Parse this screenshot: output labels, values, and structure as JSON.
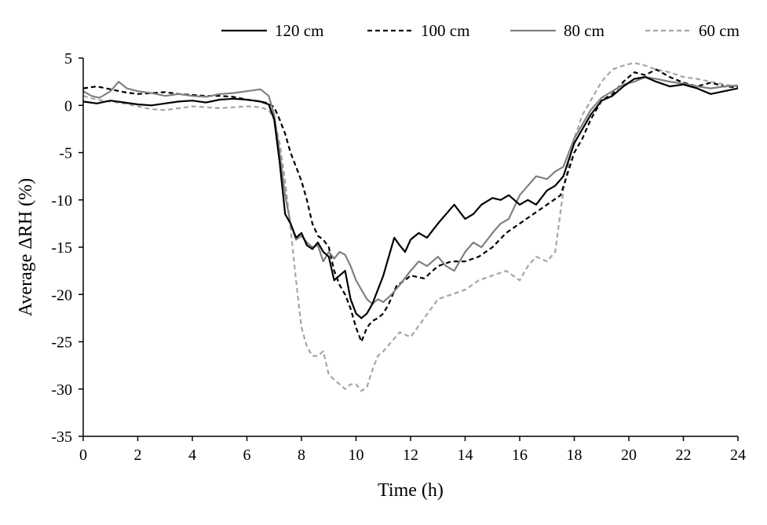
{
  "chart_data": {
    "type": "line",
    "title": "",
    "xlabel": "Time (h)",
    "ylabel": "Average ΔRH (%)",
    "xlim": [
      0,
      24
    ],
    "ylim": [
      -35,
      5
    ],
    "xticks": [
      0,
      2,
      4,
      6,
      8,
      10,
      12,
      14,
      16,
      18,
      20,
      22,
      24
    ],
    "yticks": [
      5,
      0,
      -5,
      -10,
      -15,
      -20,
      -25,
      -30,
      -35
    ],
    "grid": false,
    "legend": "top",
    "series": [
      {
        "name": "120 cm",
        "color": "#000000",
        "dash": "solid",
        "points": [
          [
            0,
            0.4
          ],
          [
            0.5,
            0.2
          ],
          [
            1,
            0.5
          ],
          [
            1.5,
            0.3
          ],
          [
            2,
            0.1
          ],
          [
            2.5,
            0.0
          ],
          [
            3,
            0.2
          ],
          [
            3.5,
            0.4
          ],
          [
            4,
            0.5
          ],
          [
            4.5,
            0.3
          ],
          [
            5,
            0.6
          ],
          [
            5.5,
            0.7
          ],
          [
            6,
            0.6
          ],
          [
            6.5,
            0.4
          ],
          [
            6.8,
            0.1
          ],
          [
            7,
            -1.5
          ],
          [
            7.2,
            -6.0
          ],
          [
            7.4,
            -11.5
          ],
          [
            7.6,
            -12.5
          ],
          [
            7.8,
            -14.0
          ],
          [
            8,
            -13.5
          ],
          [
            8.2,
            -14.8
          ],
          [
            8.4,
            -15.2
          ],
          [
            8.6,
            -14.5
          ],
          [
            8.8,
            -15.5
          ],
          [
            9,
            -16.0
          ],
          [
            9.2,
            -18.5
          ],
          [
            9.4,
            -18.0
          ],
          [
            9.6,
            -17.5
          ],
          [
            9.8,
            -20.5
          ],
          [
            10,
            -22.0
          ],
          [
            10.2,
            -22.5
          ],
          [
            10.4,
            -22.0
          ],
          [
            10.6,
            -21.0
          ],
          [
            10.8,
            -19.5
          ],
          [
            11,
            -18.0
          ],
          [
            11.2,
            -16.0
          ],
          [
            11.4,
            -14.0
          ],
          [
            11.6,
            -14.8
          ],
          [
            11.8,
            -15.5
          ],
          [
            12,
            -14.2
          ],
          [
            12.3,
            -13.5
          ],
          [
            12.6,
            -14.0
          ],
          [
            13,
            -12.5
          ],
          [
            13.3,
            -11.5
          ],
          [
            13.6,
            -10.5
          ],
          [
            14,
            -12.0
          ],
          [
            14.3,
            -11.5
          ],
          [
            14.6,
            -10.5
          ],
          [
            15,
            -9.8
          ],
          [
            15.3,
            -10.0
          ],
          [
            15.6,
            -9.5
          ],
          [
            16,
            -10.5
          ],
          [
            16.3,
            -10.0
          ],
          [
            16.6,
            -10.5
          ],
          [
            17,
            -9.0
          ],
          [
            17.3,
            -8.5
          ],
          [
            17.6,
            -7.5
          ],
          [
            18,
            -4.0
          ],
          [
            18.3,
            -2.5
          ],
          [
            18.6,
            -1.0
          ],
          [
            19,
            0.5
          ],
          [
            19.4,
            1.0
          ],
          [
            19.8,
            2.0
          ],
          [
            20.2,
            2.8
          ],
          [
            20.6,
            3.0
          ],
          [
            21,
            2.5
          ],
          [
            21.5,
            2.0
          ],
          [
            22,
            2.2
          ],
          [
            22.5,
            1.8
          ],
          [
            23,
            1.2
          ],
          [
            23.5,
            1.5
          ],
          [
            24,
            1.8
          ]
        ]
      },
      {
        "name": "100 cm",
        "color": "#000000",
        "dash": "dashed",
        "points": [
          [
            0,
            1.8
          ],
          [
            0.5,
            2.0
          ],
          [
            1,
            1.7
          ],
          [
            1.5,
            1.4
          ],
          [
            2,
            1.2
          ],
          [
            2.5,
            1.3
          ],
          [
            3,
            1.4
          ],
          [
            3.5,
            1.2
          ],
          [
            4,
            1.1
          ],
          [
            4.5,
            1.0
          ],
          [
            5,
            1.0
          ],
          [
            5.5,
            0.9
          ],
          [
            6,
            0.6
          ],
          [
            6.5,
            0.4
          ],
          [
            6.8,
            0.2
          ],
          [
            7,
            -0.2
          ],
          [
            7.2,
            -1.5
          ],
          [
            7.4,
            -3.0
          ],
          [
            7.6,
            -5.0
          ],
          [
            7.8,
            -6.5
          ],
          [
            8,
            -8.0
          ],
          [
            8.2,
            -10.0
          ],
          [
            8.4,
            -12.5
          ],
          [
            8.6,
            -13.8
          ],
          [
            8.8,
            -14.2
          ],
          [
            9,
            -15.0
          ],
          [
            9.2,
            -17.5
          ],
          [
            9.4,
            -19.0
          ],
          [
            9.6,
            -20.0
          ],
          [
            9.8,
            -21.5
          ],
          [
            10,
            -23.5
          ],
          [
            10.2,
            -25.0
          ],
          [
            10.4,
            -23.5
          ],
          [
            10.6,
            -22.8
          ],
          [
            10.8,
            -22.5
          ],
          [
            11,
            -22.0
          ],
          [
            11.2,
            -21.0
          ],
          [
            11.5,
            -19.0
          ],
          [
            11.8,
            -18.5
          ],
          [
            12,
            -18.0
          ],
          [
            12.5,
            -18.3
          ],
          [
            13,
            -17.0
          ],
          [
            13.5,
            -16.5
          ],
          [
            14,
            -16.5
          ],
          [
            14.5,
            -16.0
          ],
          [
            15,
            -15.0
          ],
          [
            15.5,
            -13.5
          ],
          [
            16,
            -12.5
          ],
          [
            16.5,
            -11.5
          ],
          [
            17,
            -10.5
          ],
          [
            17.5,
            -9.5
          ],
          [
            18,
            -5.0
          ],
          [
            18.3,
            -3.5
          ],
          [
            18.6,
            -1.5
          ],
          [
            19,
            0.5
          ],
          [
            19.4,
            1.2
          ],
          [
            19.8,
            2.5
          ],
          [
            20.2,
            3.5
          ],
          [
            20.6,
            3.2
          ],
          [
            21,
            3.8
          ],
          [
            21.5,
            3.0
          ],
          [
            22,
            2.4
          ],
          [
            22.5,
            2.0
          ],
          [
            23,
            2.4
          ],
          [
            23.5,
            2.0
          ],
          [
            24,
            1.9
          ]
        ]
      },
      {
        "name": "80 cm",
        "color": "#808080",
        "dash": "solid",
        "points": [
          [
            0,
            1.5
          ],
          [
            0.3,
            1.0
          ],
          [
            0.6,
            0.8
          ],
          [
            1,
            1.5
          ],
          [
            1.3,
            2.5
          ],
          [
            1.6,
            1.8
          ],
          [
            2,
            1.5
          ],
          [
            2.5,
            1.3
          ],
          [
            3,
            1.0
          ],
          [
            3.5,
            1.2
          ],
          [
            4,
            1.0
          ],
          [
            4.5,
            0.9
          ],
          [
            5,
            1.2
          ],
          [
            5.5,
            1.3
          ],
          [
            6,
            1.5
          ],
          [
            6.5,
            1.7
          ],
          [
            6.8,
            1.0
          ],
          [
            7,
            -1.0
          ],
          [
            7.2,
            -5.0
          ],
          [
            7.4,
            -9.5
          ],
          [
            7.6,
            -12.5
          ],
          [
            7.8,
            -14.2
          ],
          [
            8,
            -13.8
          ],
          [
            8.2,
            -14.5
          ],
          [
            8.4,
            -15.0
          ],
          [
            8.6,
            -14.8
          ],
          [
            8.8,
            -16.5
          ],
          [
            9,
            -15.5
          ],
          [
            9.2,
            -16.2
          ],
          [
            9.4,
            -15.5
          ],
          [
            9.6,
            -15.8
          ],
          [
            9.8,
            -17.0
          ],
          [
            10,
            -18.5
          ],
          [
            10.2,
            -19.5
          ],
          [
            10.4,
            -20.5
          ],
          [
            10.6,
            -21.0
          ],
          [
            10.8,
            -20.5
          ],
          [
            11,
            -20.8
          ],
          [
            11.3,
            -20.0
          ],
          [
            11.6,
            -19.0
          ],
          [
            12,
            -17.5
          ],
          [
            12.3,
            -16.5
          ],
          [
            12.6,
            -17.0
          ],
          [
            13,
            -16.0
          ],
          [
            13.3,
            -17.0
          ],
          [
            13.6,
            -17.5
          ],
          [
            14,
            -15.5
          ],
          [
            14.3,
            -14.5
          ],
          [
            14.6,
            -15.0
          ],
          [
            15,
            -13.5
          ],
          [
            15.3,
            -12.5
          ],
          [
            15.6,
            -12.0
          ],
          [
            16,
            -9.5
          ],
          [
            16.3,
            -8.5
          ],
          [
            16.6,
            -7.5
          ],
          [
            17,
            -7.8
          ],
          [
            17.3,
            -7.0
          ],
          [
            17.6,
            -6.5
          ],
          [
            18,
            -3.5
          ],
          [
            18.3,
            -2.0
          ],
          [
            18.6,
            -0.5
          ],
          [
            19,
            0.8
          ],
          [
            19.4,
            1.5
          ],
          [
            19.8,
            2.2
          ],
          [
            20.2,
            2.5
          ],
          [
            20.6,
            3.0
          ],
          [
            21,
            2.8
          ],
          [
            21.5,
            2.5
          ],
          [
            22,
            2.3
          ],
          [
            22.5,
            2.0
          ],
          [
            23,
            1.8
          ],
          [
            23.5,
            2.0
          ],
          [
            24,
            2.1
          ]
        ]
      },
      {
        "name": "60 cm",
        "color": "#a6a6a6",
        "dash": "dashed",
        "points": [
          [
            0,
            1.0
          ],
          [
            0.5,
            0.6
          ],
          [
            1,
            0.4
          ],
          [
            1.5,
            0.2
          ],
          [
            2,
            -0.1
          ],
          [
            2.5,
            -0.4
          ],
          [
            3,
            -0.5
          ],
          [
            3.5,
            -0.3
          ],
          [
            4,
            -0.1
          ],
          [
            4.5,
            -0.2
          ],
          [
            5,
            -0.3
          ],
          [
            5.5,
            -0.2
          ],
          [
            6,
            -0.1
          ],
          [
            6.5,
            -0.2
          ],
          [
            6.8,
            -0.5
          ],
          [
            7,
            -1.5
          ],
          [
            7.2,
            -4.0
          ],
          [
            7.4,
            -8.0
          ],
          [
            7.6,
            -13.0
          ],
          [
            7.8,
            -18.5
          ],
          [
            8,
            -23.5
          ],
          [
            8.2,
            -25.5
          ],
          [
            8.4,
            -26.5
          ],
          [
            8.6,
            -26.5
          ],
          [
            8.8,
            -26.0
          ],
          [
            9,
            -28.5
          ],
          [
            9.2,
            -29.0
          ],
          [
            9.4,
            -29.5
          ],
          [
            9.6,
            -30.0
          ],
          [
            9.8,
            -29.5
          ],
          [
            10,
            -29.5
          ],
          [
            10.2,
            -30.2
          ],
          [
            10.4,
            -29.8
          ],
          [
            10.6,
            -28.0
          ],
          [
            10.8,
            -26.5
          ],
          [
            11,
            -26.0
          ],
          [
            11.3,
            -25.0
          ],
          [
            11.6,
            -24.0
          ],
          [
            12,
            -24.5
          ],
          [
            12.5,
            -22.5
          ],
          [
            13,
            -20.5
          ],
          [
            13.5,
            -20.0
          ],
          [
            14,
            -19.5
          ],
          [
            14.5,
            -18.5
          ],
          [
            15,
            -18.0
          ],
          [
            15.5,
            -17.5
          ],
          [
            16,
            -18.5
          ],
          [
            16.3,
            -17.0
          ],
          [
            16.6,
            -16.0
          ],
          [
            17,
            -16.5
          ],
          [
            17.3,
            -15.5
          ],
          [
            17.6,
            -9.0
          ],
          [
            18,
            -3.5
          ],
          [
            18.3,
            -1.0
          ],
          [
            18.6,
            0.5
          ],
          [
            19,
            2.5
          ],
          [
            19.4,
            3.8
          ],
          [
            19.8,
            4.2
          ],
          [
            20.2,
            4.5
          ],
          [
            20.6,
            4.2
          ],
          [
            21,
            3.8
          ],
          [
            21.5,
            3.5
          ],
          [
            22,
            3.0
          ],
          [
            22.5,
            2.8
          ],
          [
            23,
            2.5
          ],
          [
            23.5,
            2.2
          ],
          [
            24,
            2.0
          ]
        ]
      }
    ]
  }
}
